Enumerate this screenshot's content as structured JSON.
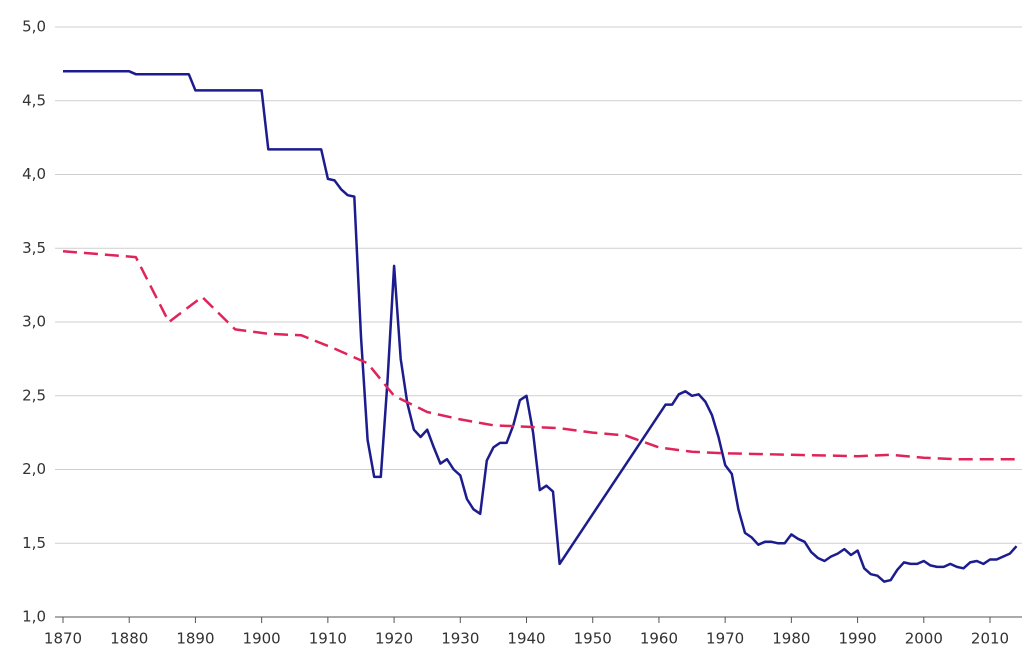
{
  "chart_data": {
    "type": "line",
    "xlim": [
      1870,
      2014
    ],
    "xticks": [
      1870,
      1880,
      1890,
      1900,
      1910,
      1920,
      1930,
      1940,
      1950,
      1960,
      1970,
      1980,
      1990,
      2000,
      2010
    ],
    "ylim": [
      1,
      5
    ],
    "yticks": [
      {
        "value": 1,
        "label": "1,0"
      },
      {
        "value": 1.5,
        "label": "1,5"
      },
      {
        "value": 2,
        "label": "2,0"
      },
      {
        "value": 2.5,
        "label": "2,5"
      },
      {
        "value": 3,
        "label": "3,0"
      },
      {
        "value": 3.5,
        "label": "3,5"
      },
      {
        "value": 4,
        "label": "4,0"
      },
      {
        "value": 4.5,
        "label": "4,5"
      },
      {
        "value": 5,
        "label": "5,0"
      }
    ],
    "grid": true,
    "series": [
      {
        "color": "#1c1c8e",
        "dash": false,
        "x": [
          1870,
          1880,
          1881,
          1889,
          1890,
          1900,
          1901,
          1909,
          1910,
          1911,
          1912,
          1913,
          1914,
          1915,
          1916,
          1917,
          1918,
          1919,
          1920,
          1921,
          1922,
          1923,
          1924,
          1925,
          1926,
          1927,
          1928,
          1929,
          1930,
          1931,
          1932,
          1933,
          1934,
          1935,
          1936,
          1937,
          1938,
          1939,
          1940,
          1941,
          1942,
          1943,
          1944,
          1945,
          1961,
          1962,
          1963,
          1964,
          1965,
          1966,
          1967,
          1968,
          1969,
          1970,
          1971,
          1972,
          1973,
          1974,
          1975,
          1976,
          1977,
          1978,
          1979,
          1980,
          1981,
          1982,
          1983,
          1984,
          1985,
          1986,
          1987,
          1988,
          1989,
          1990,
          1991,
          1992,
          1993,
          1994,
          1995,
          1996,
          1997,
          1998,
          1999,
          2000,
          2001,
          2002,
          2003,
          2004,
          2005,
          2006,
          2007,
          2008,
          2009,
          2010,
          2011,
          2012,
          2013,
          2014
        ],
        "values": [
          4.7,
          4.7,
          4.68,
          4.68,
          4.57,
          4.57,
          4.17,
          4.17,
          3.97,
          3.96,
          3.9,
          3.86,
          3.85,
          2.9,
          2.2,
          1.95,
          1.95,
          2.6,
          3.38,
          2.75,
          2.45,
          2.27,
          2.22,
          2.27,
          2.15,
          2.04,
          2.07,
          2.0,
          1.96,
          1.8,
          1.73,
          1.7,
          2.06,
          2.15,
          2.18,
          2.18,
          2.3,
          2.47,
          2.5,
          2.25,
          1.86,
          1.89,
          1.85,
          1.36,
          2.44,
          2.44,
          2.51,
          2.53,
          2.5,
          2.51,
          2.46,
          2.37,
          2.22,
          2.03,
          1.97,
          1.73,
          1.57,
          1.54,
          1.49,
          1.51,
          1.51,
          1.5,
          1.5,
          1.56,
          1.53,
          1.51,
          1.44,
          1.4,
          1.38,
          1.41,
          1.43,
          1.46,
          1.42,
          1.45,
          1.33,
          1.29,
          1.28,
          1.24,
          1.25,
          1.32,
          1.37,
          1.36,
          1.36,
          1.38,
          1.35,
          1.34,
          1.34,
          1.36,
          1.34,
          1.33,
          1.37,
          1.38,
          1.36,
          1.39,
          1.39,
          1.41,
          1.43,
          1.48
        ]
      },
      {
        "color": "#e0245a",
        "dash": true,
        "x": [
          1870,
          1881,
          1886,
          1891,
          1896,
          1901,
          1906,
          1911,
          1916,
          1920,
          1925,
          1930,
          1935,
          1940,
          1945,
          1950,
          1955,
          1960,
          1965,
          1970,
          1980,
          1990,
          1995,
          2000,
          2005,
          2014
        ],
        "values": [
          3.48,
          3.44,
          3.0,
          3.17,
          2.95,
          2.92,
          2.91,
          2.82,
          2.72,
          2.5,
          2.39,
          2.34,
          2.3,
          2.29,
          2.28,
          2.25,
          2.23,
          2.15,
          2.12,
          2.11,
          2.1,
          2.09,
          2.1,
          2.08,
          2.07,
          2.07
        ]
      }
    ]
  }
}
